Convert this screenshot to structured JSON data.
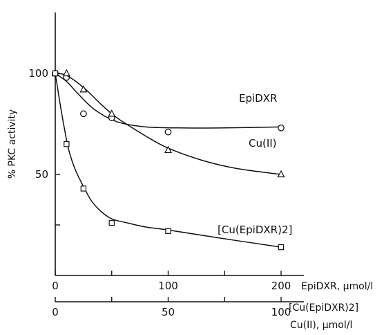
{
  "chart_data": {
    "type": "scatter",
    "title": "",
    "ylabel": "% PKC activity",
    "ylim": [
      0,
      130
    ],
    "yticks": [
      0,
      50,
      100
    ],
    "ytick_labels": [
      "",
      "50",
      "100"
    ],
    "x_axes": [
      {
        "label": "EpiDXR, µmol/l",
        "lim": [
          0,
          220
        ],
        "ticks": [
          0,
          50,
          100,
          150,
          200
        ],
        "tick_labels": [
          "0",
          "",
          "100",
          "",
          "200"
        ]
      },
      {
        "label": [
          "[Cu(EpiDXR)2]",
          "Cu(II), µmol/l"
        ],
        "lim": [
          0,
          110
        ],
        "ticks": [
          0,
          25,
          50,
          75,
          100
        ],
        "tick_labels": [
          "0",
          "",
          "50",
          "",
          "100"
        ]
      }
    ],
    "series": [
      {
        "name": "EpiDXR",
        "marker": "circle",
        "axis": 0,
        "points": [
          [
            0,
            100
          ],
          [
            10,
            98
          ],
          [
            25,
            80
          ],
          [
            50,
            78
          ],
          [
            100,
            71
          ],
          [
            200,
            73
          ]
        ],
        "curve": [
          [
            0,
            100
          ],
          [
            10,
            96
          ],
          [
            20,
            90
          ],
          [
            35,
            82
          ],
          [
            55,
            76
          ],
          [
            80,
            73.5
          ],
          [
            110,
            73
          ],
          [
            150,
            73
          ],
          [
            200,
            73.5
          ]
        ]
      },
      {
        "name": "Cu(II)",
        "marker": "triangle",
        "axis": 1,
        "points": [
          [
            0,
            100
          ],
          [
            5,
            100
          ],
          [
            12.5,
            92
          ],
          [
            25,
            80
          ],
          [
            50,
            62
          ],
          [
            100,
            50
          ]
        ],
        "curve": [
          [
            0,
            100
          ],
          [
            5,
            99
          ],
          [
            12.5,
            93
          ],
          [
            20,
            85
          ],
          [
            25,
            80
          ],
          [
            30,
            76
          ],
          [
            40,
            69
          ],
          [
            50,
            63
          ],
          [
            65,
            57
          ],
          [
            80,
            53
          ],
          [
            100,
            50
          ]
        ]
      },
      {
        "name": "[Cu(EpiDXR)2]",
        "marker": "square",
        "axis": 1,
        "points": [
          [
            0,
            100
          ],
          [
            5,
            65
          ],
          [
            12.5,
            43
          ],
          [
            25,
            26
          ],
          [
            50,
            22
          ],
          [
            100,
            14
          ]
        ],
        "curve": [
          [
            0,
            100
          ],
          [
            2,
            86
          ],
          [
            4,
            73
          ],
          [
            6,
            62
          ],
          [
            9,
            52
          ],
          [
            12.5,
            44
          ],
          [
            16,
            37
          ],
          [
            20,
            32
          ],
          [
            25,
            28
          ],
          [
            32,
            26
          ],
          [
            40,
            24
          ],
          [
            50,
            22.5
          ],
          [
            70,
            19
          ],
          [
            100,
            14
          ]
        ]
      }
    ]
  }
}
